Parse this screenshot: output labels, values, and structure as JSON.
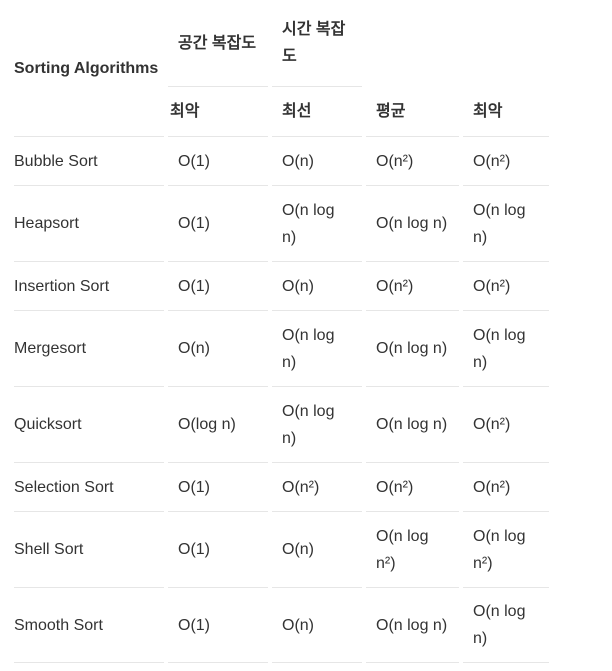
{
  "header": {
    "group": [
      "Sorting Algorithms",
      "공간 복잡도",
      "시간 복잡도"
    ],
    "sub": [
      "최악",
      "최선",
      "평균",
      "최악"
    ]
  },
  "table": {
    "rows": [
      [
        "Bubble Sort",
        "O(1)",
        "O(n)",
        "O(n²)",
        "O(n²)"
      ],
      [
        "Heapsort",
        "O(1)",
        "O(n log n)",
        "O(n log n)",
        "O(n log n)"
      ],
      [
        "Insertion Sort",
        "O(1)",
        "O(n)",
        "O(n²)",
        "O(n²)"
      ],
      [
        "Mergesort",
        "O(n)",
        "O(n log n)",
        "O(n log n)",
        "O(n log n)"
      ],
      [
        "Quicksort",
        "O(log n)",
        "O(n log n)",
        "O(n log n)",
        "O(n²)"
      ],
      [
        "Selection Sort",
        "O(1)",
        "O(n²)",
        "O(n²)",
        "O(n²)"
      ],
      [
        "Shell Sort",
        "O(1)",
        "O(n)",
        "O(n log n²)",
        "O(n log n²)"
      ],
      [
        "Smooth Sort",
        "O(1)",
        "O(n)",
        "O(n log n)",
        "O(n log n)"
      ]
    ]
  }
}
